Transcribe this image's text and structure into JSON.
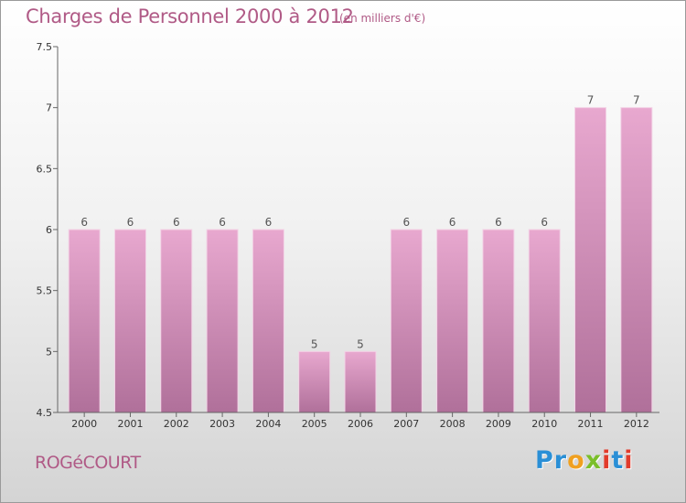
{
  "header": {
    "title": "Charges de Personnel 2000 à 2012",
    "subtitle": "(en milliers d'€)"
  },
  "footer": {
    "commune": "ROGéCOURT",
    "logo_text": "Proxiti"
  },
  "colors": {
    "bar_light": "#e8a8cf",
    "bar_dark": "#b0709a",
    "text": "#b05a86",
    "axis": "#666666"
  },
  "chart_data": {
    "type": "bar",
    "title": "Charges de Personnel 2000 à 2012",
    "subtitle": "(en milliers d'€)",
    "categories": [
      "2000",
      "2001",
      "2002",
      "2003",
      "2004",
      "2005",
      "2006",
      "2007",
      "2008",
      "2009",
      "2010",
      "2011",
      "2012"
    ],
    "values": [
      6,
      6,
      6,
      6,
      6,
      5,
      5,
      6,
      6,
      6,
      6,
      7,
      7
    ],
    "value_labels": [
      "6",
      "6",
      "6",
      "6",
      "6",
      "5",
      "5",
      "6",
      "6",
      "6",
      "6",
      "7",
      "7"
    ],
    "ylim": [
      4.5,
      7.5
    ],
    "yticks": [
      4.5,
      5,
      5.5,
      6,
      6.5,
      7,
      7.5
    ],
    "ytick_labels": [
      "4.5",
      "5",
      "5.5",
      "6",
      "6.5",
      "7",
      "7.5"
    ],
    "xlabel": "",
    "ylabel": "",
    "grid": false,
    "legend": "none"
  }
}
